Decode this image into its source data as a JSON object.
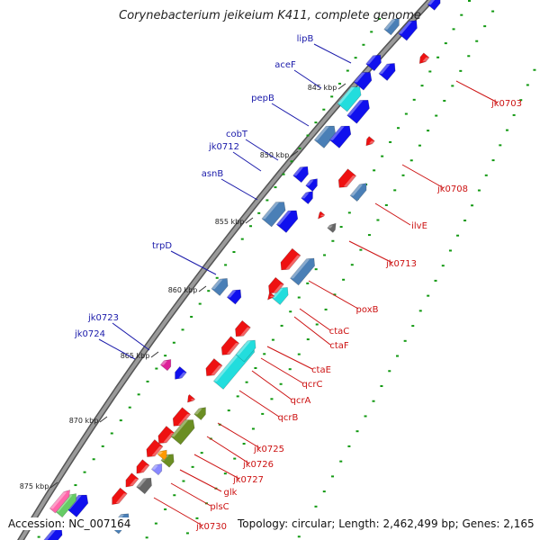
{
  "title": "Corynebacterium jeikeium K411, complete genome",
  "footer": {
    "accession": "Accession: NC_007164",
    "summary": "Topology: circular; Length: 2,462,499 bp; Genes: 2,165"
  },
  "ticks": [
    "845 kbp",
    "850 kbp",
    "855 kbp",
    "860 kbp",
    "865 kbp",
    "870 kbp",
    "875 kbp"
  ],
  "left_labels": [
    "lipB",
    "aceF",
    "pepB",
    "cobT",
    "jk0712",
    "asnB",
    "trpD",
    "jk0723",
    "jk0724"
  ],
  "right_labels": [
    "jk0703",
    "jk0708",
    "ilvE",
    "jk0713",
    "poxB",
    "ctaC",
    "ctaF",
    "ctaE",
    "qcrC",
    "qcrA",
    "qcrB",
    "jk0725",
    "jk0726",
    "jk0727",
    "glk",
    "plsC",
    "jk0730"
  ],
  "colors": {
    "forward_gene": "#1010ee",
    "forward_gene_alt": "#4a7fb6",
    "reverse_gene": "#ee1111",
    "highlight_cyan": "#22dddd",
    "left_label": "#1a1aaa",
    "right_label": "#cc1111",
    "backbone": "#7a7a7a",
    "dots": "#119911"
  }
}
